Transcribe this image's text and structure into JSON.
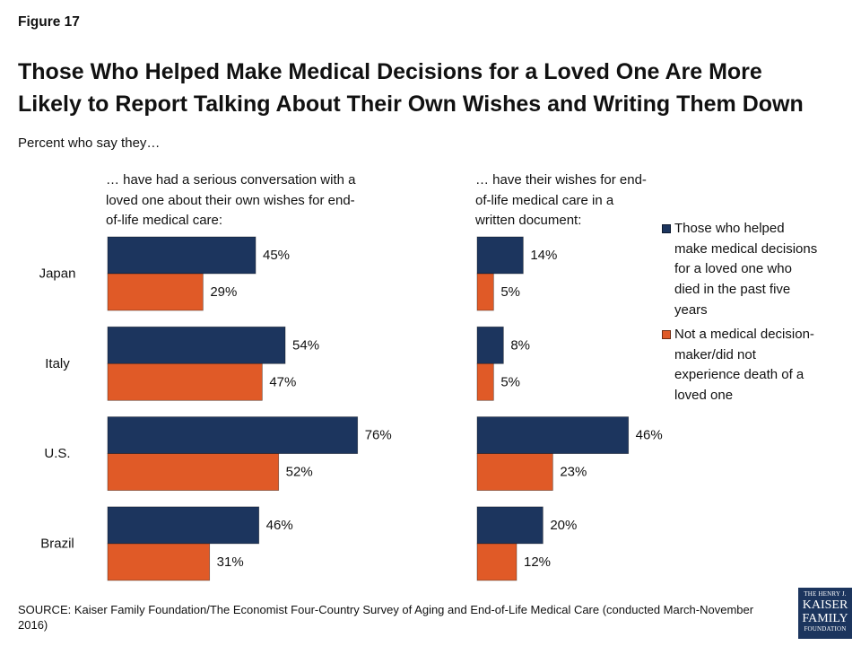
{
  "figure_label": "Figure 17",
  "title": "Those Who Helped Make Medical Decisions for a Loved One Are More Likely to Report Talking About Their Own Wishes and Writing Them Down",
  "subtitle": "Percent who say they…",
  "chart_data": {
    "type": "bar",
    "orientation": "horizontal",
    "categories": [
      "Japan",
      "Italy",
      "U.S.",
      "Brazil"
    ],
    "value_suffix": "%",
    "grid": false,
    "legend_position": "right",
    "series": [
      {
        "name": "Those who helped make medical decisions for a loved one who died in the past five years",
        "color": "#1c355e"
      },
      {
        "name": "Not a medical decision-maker/did not experience death of a loved one",
        "color": "#e05a27"
      }
    ],
    "panels": [
      {
        "title": "… have had a serious conversation with a loved one about their own wishes for end-of-life medical care:",
        "series": [
          {
            "values": [
              45,
              54,
              76,
              46
            ]
          },
          {
            "values": [
              29,
              47,
              52,
              31
            ]
          }
        ]
      },
      {
        "title": "… have their wishes for end-of-life medical care in a written document:",
        "series": [
          {
            "values": [
              14,
              8,
              46,
              20
            ]
          },
          {
            "values": [
              5,
              5,
              23,
              12
            ]
          }
        ]
      }
    ]
  },
  "source": "SOURCE: Kaiser Family Foundation/The Economist Four-Country Survey of Aging and End-of-Life Medical Care (conducted March-November 2016)",
  "logo": {
    "line1": "THE HENRY J.",
    "line2": "KAISER",
    "line3": "FAMILY",
    "line4": "FOUNDATION"
  }
}
